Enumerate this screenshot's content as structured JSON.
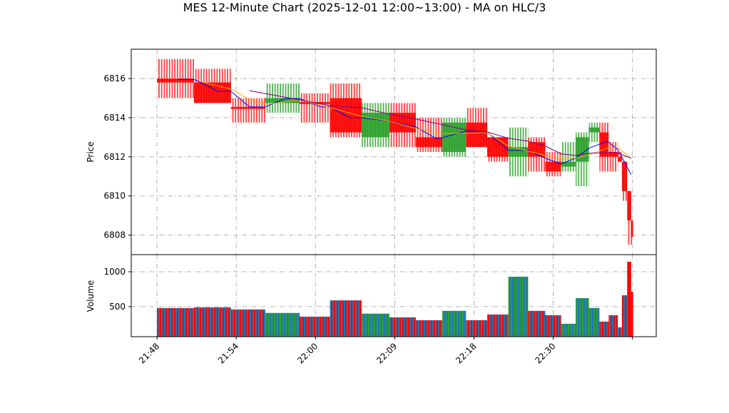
{
  "chart_data": [
    {
      "type": "candlestick",
      "title": "MES 12-Minute Chart (2025-12-01 12:00~13:00) - MA on HLC/3",
      "ylabel": "Price",
      "ylim": [
        6807.0,
        6817.5
      ],
      "yticks": [
        6808,
        6810,
        6812,
        6814,
        6816
      ],
      "grid": true,
      "xlim": [
        -1.95,
        37.8
      ],
      "xticks": [
        0,
        6,
        12,
        18,
        24,
        30,
        36
      ],
      "xtick_labels": [
        "21:48",
        "21:54",
        "22:00",
        "22:09",
        "22:18",
        "22:30",
        ""
      ],
      "colors": {
        "up": "#2ca02c",
        "down": "#ff0000",
        "ma_fast": "#0000ff",
        "ma_mid": "#ffa500",
        "ma_slow": "#800080"
      },
      "candles": [
        {
          "x": [
            0.0,
            2.8
          ],
          "o": 6816.0,
          "h": 6817.0,
          "l": 6815.0,
          "c": 6815.8
        },
        {
          "x": [
            2.8,
            5.6
          ],
          "o": 6815.8,
          "h": 6816.5,
          "l": 6814.75,
          "c": 6814.75
        },
        {
          "x": [
            5.6,
            8.2
          ],
          "o": 6814.55,
          "h": 6815.0,
          "l": 6813.75,
          "c": 6814.45
        },
        {
          "x": [
            8.2,
            10.8
          ],
          "o": 6814.75,
          "h": 6815.75,
          "l": 6814.25,
          "c": 6815.0
        },
        {
          "x": [
            10.8,
            13.1
          ],
          "o": 6814.8,
          "h": 6815.25,
          "l": 6813.75,
          "c": 6814.7
        },
        {
          "x": [
            13.1,
            15.5
          ],
          "o": 6815.0,
          "h": 6815.75,
          "l": 6813.0,
          "c": 6813.25
        },
        {
          "x": [
            15.5,
            17.6
          ],
          "o": 6813.0,
          "h": 6814.75,
          "l": 6812.5,
          "c": 6814.25
        },
        {
          "x": [
            17.6,
            19.6
          ],
          "o": 6814.25,
          "h": 6814.75,
          "l": 6812.5,
          "c": 6813.25
        },
        {
          "x": [
            19.6,
            21.6
          ],
          "o": 6813.0,
          "h": 6814.0,
          "l": 6812.25,
          "c": 6812.5
        },
        {
          "x": [
            21.6,
            23.4
          ],
          "o": 6812.25,
          "h": 6814.0,
          "l": 6812.0,
          "c": 6813.75
        },
        {
          "x": [
            23.4,
            25.0
          ],
          "o": 6813.75,
          "h": 6814.5,
          "l": 6812.5,
          "c": 6812.5
        },
        {
          "x": [
            25.0,
            26.6
          ],
          "o": 6813.0,
          "h": 6813.0,
          "l": 6811.75,
          "c": 6812.0
        },
        {
          "x": [
            26.6,
            28.1
          ],
          "o": 6812.0,
          "h": 6813.5,
          "l": 6811.0,
          "c": 6812.5
        },
        {
          "x": [
            28.1,
            29.4
          ],
          "o": 6812.75,
          "h": 6813.0,
          "l": 6811.25,
          "c": 6812.0
        },
        {
          "x": [
            29.4,
            30.6
          ],
          "o": 6811.75,
          "h": 6812.25,
          "l": 6811.0,
          "c": 6811.25
        },
        {
          "x": [
            30.6,
            31.7
          ],
          "o": 6811.5,
          "h": 6812.75,
          "l": 6811.25,
          "c": 6811.75
        },
        {
          "x": [
            31.7,
            32.7
          ],
          "o": 6811.75,
          "h": 6813.25,
          "l": 6810.5,
          "c": 6813.0
        },
        {
          "x": [
            32.7,
            33.5
          ],
          "o": 6813.25,
          "h": 6813.75,
          "l": 6812.75,
          "c": 6813.5
        },
        {
          "x": [
            33.5,
            34.2
          ],
          "o": 6813.25,
          "h": 6813.75,
          "l": 6811.25,
          "c": 6812.0
        },
        {
          "x": [
            34.2,
            34.9
          ],
          "o": 6812.25,
          "h": 6812.75,
          "l": 6811.25,
          "c": 6812.0
        },
        {
          "x": [
            34.9,
            35.2
          ],
          "o": 6812.0,
          "h": 6812.25,
          "l": 6811.75,
          "c": 6811.75
        },
        {
          "x": [
            35.2,
            35.6
          ],
          "o": 6811.75,
          "h": 6811.75,
          "l": 6809.75,
          "c": 6810.25
        },
        {
          "x": [
            35.6,
            35.9
          ],
          "o": 6810.25,
          "h": 6810.25,
          "l": 6807.5,
          "c": 6808.75
        },
        {
          "x": [
            35.9,
            36.05
          ],
          "o": 6808.75,
          "h": 6808.75,
          "l": 6807.5,
          "c": 6807.9
        }
      ],
      "moving_averages": [
        {
          "color": "#0000ff",
          "points": [
            [
              1.6,
              6815.96
            ],
            [
              2.8,
              6815.96
            ],
            [
              3.8,
              6815.64
            ],
            [
              4.6,
              6815.35
            ],
            [
              5.6,
              6815.35
            ],
            [
              7.0,
              6814.55
            ],
            [
              8.2,
              6814.55
            ],
            [
              9.7,
              6814.98
            ],
            [
              10.8,
              6814.98
            ],
            [
              12.4,
              6814.55
            ],
            [
              13.1,
              6814.55
            ],
            [
              14.6,
              6814.0
            ],
            [
              15.5,
              6814.0
            ],
            [
              17.6,
              6813.82
            ],
            [
              19.6,
              6813.53
            ],
            [
              21.2,
              6812.91
            ],
            [
              23.4,
              6813.31
            ],
            [
              25.0,
              6813.27
            ],
            [
              26.6,
              6812.33
            ],
            [
              28.1,
              6812.33
            ],
            [
              29.4,
              6811.93
            ],
            [
              30.6,
              6811.64
            ],
            [
              31.7,
              6811.93
            ],
            [
              32.7,
              6812.44
            ],
            [
              34.1,
              6812.8
            ],
            [
              34.9,
              6812.36
            ],
            [
              35.9,
              6811.09
            ]
          ]
        },
        {
          "color": "#ffa500",
          "points": [
            [
              3.4,
              6815.82
            ],
            [
              5.7,
              6815.45
            ],
            [
              7.0,
              6814.91
            ],
            [
              8.4,
              6814.69
            ],
            [
              10.8,
              6814.91
            ],
            [
              13.1,
              6814.51
            ],
            [
              15.5,
              6814.07
            ],
            [
              17.6,
              6813.82
            ],
            [
              19.6,
              6813.45
            ],
            [
              21.6,
              6813.2
            ],
            [
              23.4,
              6813.2
            ],
            [
              25.0,
              6813.24
            ],
            [
              26.6,
              6812.55
            ],
            [
              28.1,
              6812.29
            ],
            [
              29.4,
              6812.07
            ],
            [
              30.6,
              6811.89
            ],
            [
              31.7,
              6811.93
            ],
            [
              32.7,
              6812.11
            ],
            [
              34.2,
              6812.47
            ],
            [
              34.9,
              6812.47
            ],
            [
              35.9,
              6811.93
            ]
          ]
        },
        {
          "color": "#800080",
          "points": [
            [
              7.0,
              6815.38
            ],
            [
              10.8,
              6814.91
            ],
            [
              13.1,
              6814.62
            ],
            [
              15.5,
              6814.51
            ],
            [
              17.6,
              6814.18
            ],
            [
              19.6,
              6813.93
            ],
            [
              21.6,
              6813.64
            ],
            [
              23.4,
              6813.38
            ],
            [
              25.0,
              6813.27
            ],
            [
              26.6,
              6812.95
            ],
            [
              28.1,
              6812.8
            ],
            [
              29.4,
              6812.55
            ],
            [
              30.6,
              6812.15
            ],
            [
              31.7,
              6812.07
            ],
            [
              32.7,
              6812.18
            ],
            [
              34.2,
              6812.22
            ],
            [
              34.9,
              6812.18
            ],
            [
              35.9,
              6811.93
            ]
          ]
        }
      ]
    },
    {
      "type": "bar",
      "ylabel": "Volume",
      "ylim": [
        70,
        1245
      ],
      "yticks": [
        500,
        1000
      ],
      "grid": true,
      "base_color": "#1f77b4",
      "values": [
        480,
        490,
        460,
        410,
        357,
        590,
        400,
        347,
        306,
        440,
        306,
        388,
        929,
        440,
        378,
        255,
        622,
        480,
        286,
        378,
        204,
        663,
        1143,
        714
      ]
    }
  ]
}
